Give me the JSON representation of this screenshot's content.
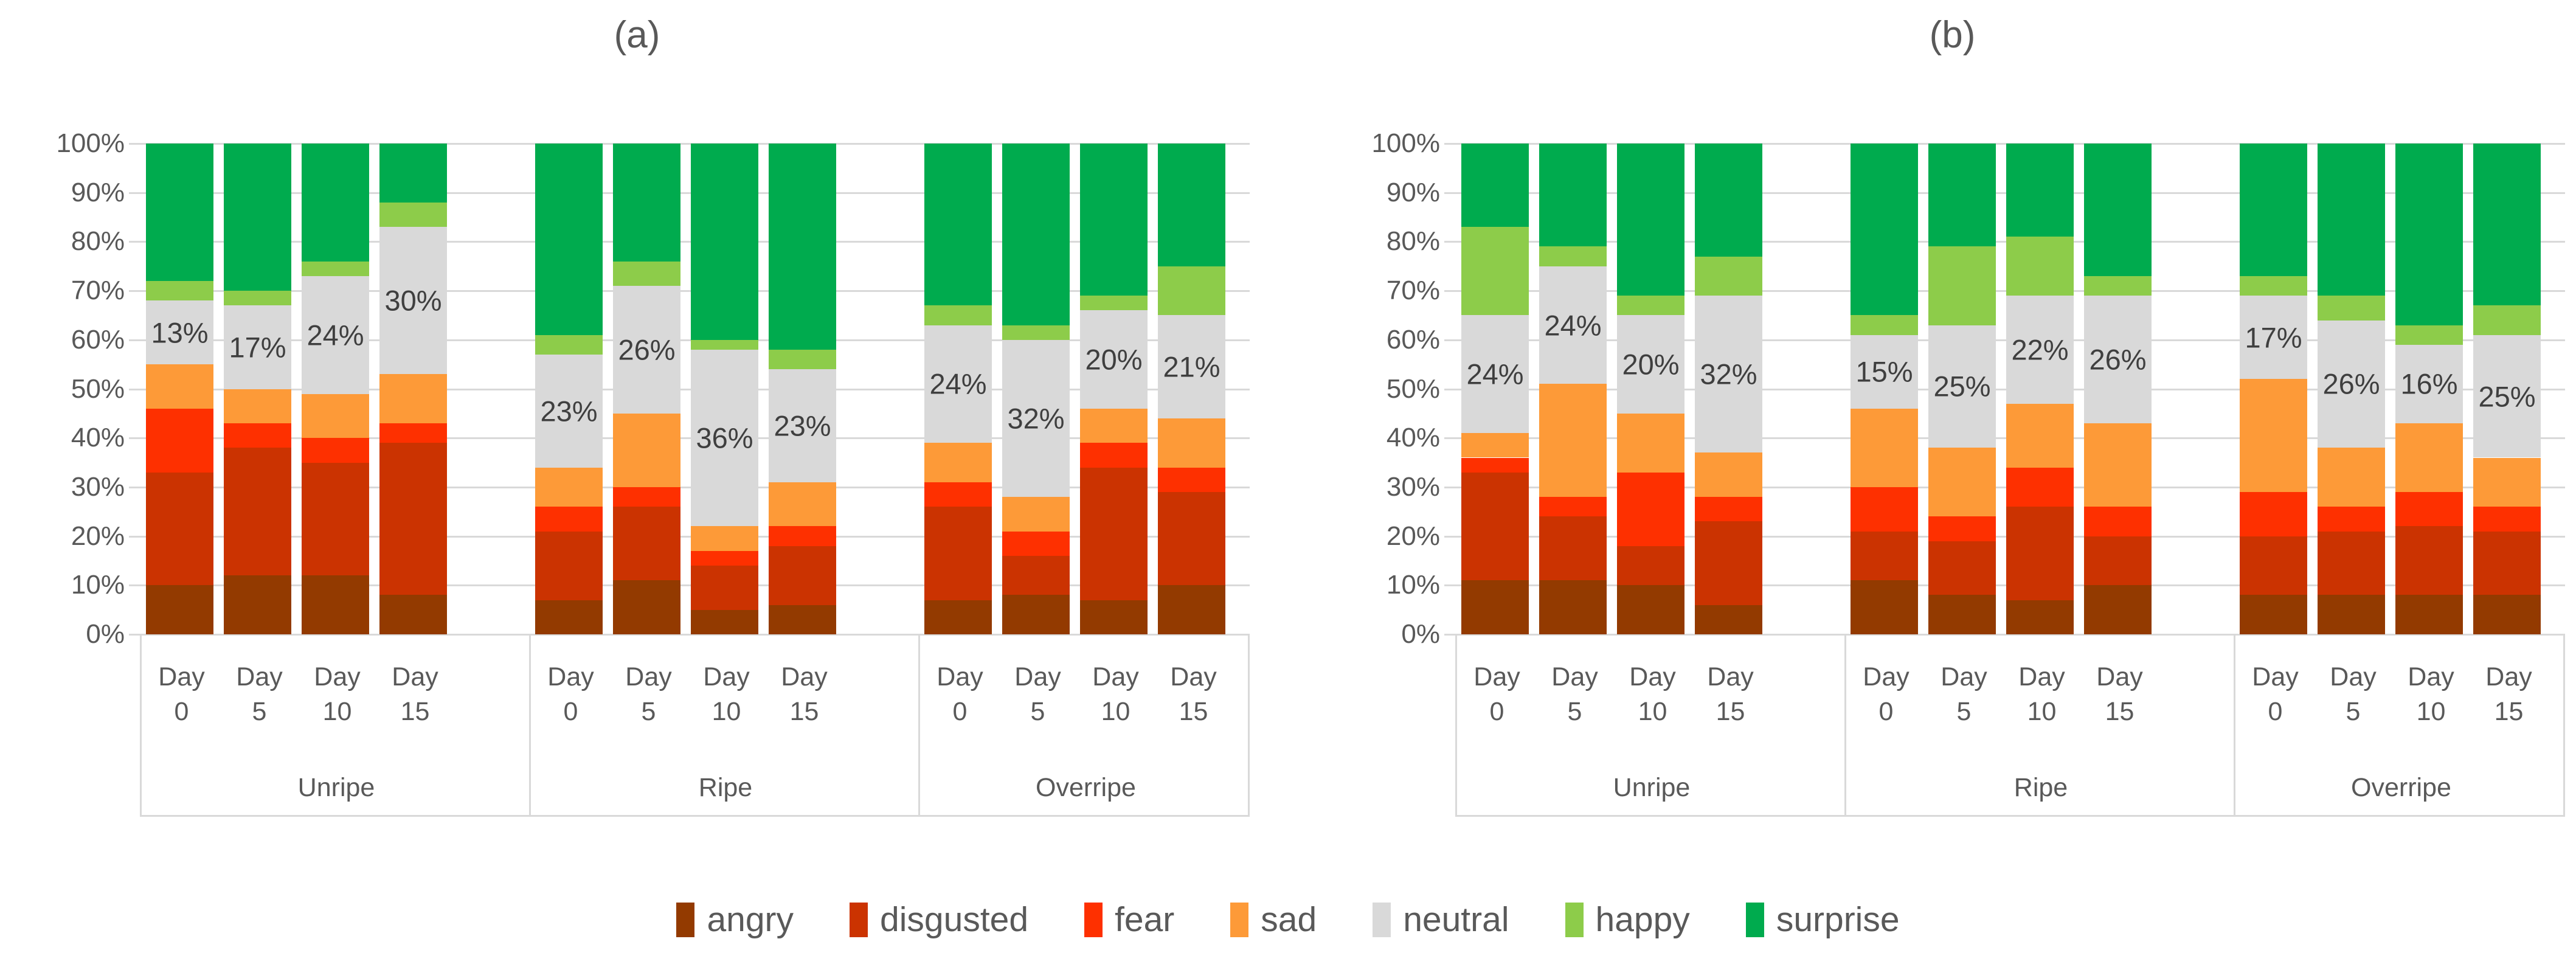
{
  "y_axis": {
    "ticks": [
      "100%",
      "90%",
      "80%",
      "70%",
      "60%",
      "50%",
      "40%",
      "30%",
      "20%",
      "10%",
      "0%"
    ],
    "min": 0,
    "max": 100,
    "step": 10,
    "grid": true
  },
  "legend": [
    {
      "label": "angry",
      "color": "#933A00"
    },
    {
      "label": "disgusted",
      "color": "#CB3301"
    },
    {
      "label": "fear",
      "color": "#FE3000"
    },
    {
      "label": "sad",
      "color": "#FD9A38"
    },
    {
      "label": "neutral",
      "color": "#D9D9D9"
    },
    {
      "label": "happy",
      "color": "#8DCC4A"
    },
    {
      "label": "surprise",
      "color": "#00AB4E"
    }
  ],
  "text_colors": {
    "axis": "#595959",
    "data_label": "#3F3F3F"
  },
  "chart_data": [
    {
      "type": "bar",
      "stacked": true,
      "title": "(a)",
      "ylim": [
        0,
        100
      ],
      "legend_position": "bottom-shared",
      "groups": [
        {
          "label": "Unripe",
          "bars": [
            {
              "day": [
                "Day",
                "0"
              ],
              "neutral_label": "13%",
              "values": {
                "angry": 10,
                "disgusted": 23,
                "fear": 13,
                "sad": 9,
                "neutral": 13,
                "happy": 4,
                "surprise": 28
              }
            },
            {
              "day": [
                "Day",
                "5"
              ],
              "neutral_label": "17%",
              "values": {
                "angry": 12,
                "disgusted": 26,
                "fear": 5,
                "sad": 7,
                "neutral": 17,
                "happy": 3,
                "surprise": 30
              }
            },
            {
              "day": [
                "Day",
                "10"
              ],
              "neutral_label": "24%",
              "values": {
                "angry": 12,
                "disgusted": 23,
                "fear": 5,
                "sad": 9,
                "neutral": 24,
                "happy": 3,
                "surprise": 24
              }
            },
            {
              "day": [
                "Day",
                "15"
              ],
              "neutral_label": "30%",
              "values": {
                "angry": 8,
                "disgusted": 31,
                "fear": 4,
                "sad": 10,
                "neutral": 30,
                "happy": 5,
                "surprise": 12
              }
            }
          ]
        },
        {
          "label": "Ripe",
          "bars": [
            {
              "day": [
                "Day",
                "0"
              ],
              "neutral_label": "23%",
              "values": {
                "angry": 7,
                "disgusted": 14,
                "fear": 5,
                "sad": 8,
                "neutral": 23,
                "happy": 4,
                "surprise": 39
              }
            },
            {
              "day": [
                "Day",
                "5"
              ],
              "neutral_label": "26%",
              "values": {
                "angry": 11,
                "disgusted": 15,
                "fear": 4,
                "sad": 15,
                "neutral": 26,
                "happy": 5,
                "surprise": 24
              }
            },
            {
              "day": [
                "Day",
                "10"
              ],
              "neutral_label": "36%",
              "values": {
                "angry": 5,
                "disgusted": 9,
                "fear": 3,
                "sad": 5,
                "neutral": 36,
                "happy": 2,
                "surprise": 40
              }
            },
            {
              "day": [
                "Day",
                "15"
              ],
              "neutral_label": "23%",
              "values": {
                "angry": 6,
                "disgusted": 12,
                "fear": 4,
                "sad": 9,
                "neutral": 23,
                "happy": 4,
                "surprise": 42
              }
            }
          ]
        },
        {
          "label": "Overripe",
          "bars": [
            {
              "day": [
                "Day",
                "0"
              ],
              "neutral_label": "24%",
              "values": {
                "angry": 7,
                "disgusted": 19,
                "fear": 5,
                "sad": 8,
                "neutral": 24,
                "happy": 4,
                "surprise": 33
              }
            },
            {
              "day": [
                "Day",
                "5"
              ],
              "neutral_label": "32%",
              "values": {
                "angry": 8,
                "disgusted": 8,
                "fear": 5,
                "sad": 7,
                "neutral": 32,
                "happy": 3,
                "surprise": 37
              }
            },
            {
              "day": [
                "Day",
                "10"
              ],
              "neutral_label": "20%",
              "values": {
                "angry": 7,
                "disgusted": 27,
                "fear": 5,
                "sad": 7,
                "neutral": 20,
                "happy": 3,
                "surprise": 31
              }
            },
            {
              "day": [
                "Day",
                "15"
              ],
              "neutral_label": "21%",
              "values": {
                "angry": 10,
                "disgusted": 19,
                "fear": 5,
                "sad": 10,
                "neutral": 21,
                "happy": 10,
                "surprise": 25
              }
            }
          ]
        }
      ]
    },
    {
      "type": "bar",
      "stacked": true,
      "title": "(b)",
      "ylim": [
        0,
        100
      ],
      "legend_position": "bottom-shared",
      "groups": [
        {
          "label": "Unripe",
          "bars": [
            {
              "day": [
                "Day",
                "0"
              ],
              "neutral_label": "24%",
              "values": {
                "angry": 11,
                "disgusted": 22,
                "fear": 3,
                "sad": 5,
                "neutral": 24,
                "happy": 18,
                "surprise": 17
              }
            },
            {
              "day": [
                "Day",
                "5"
              ],
              "neutral_label": "24%",
              "values": {
                "angry": 11,
                "disgusted": 13,
                "fear": 4,
                "sad": 23,
                "neutral": 24,
                "happy": 4,
                "surprise": 21
              }
            },
            {
              "day": [
                "Day",
                "10"
              ],
              "neutral_label": "20%",
              "values": {
                "angry": 10,
                "disgusted": 8,
                "fear": 15,
                "sad": 12,
                "neutral": 20,
                "happy": 4,
                "surprise": 31
              }
            },
            {
              "day": [
                "Day",
                "15"
              ],
              "neutral_label": "32%",
              "values": {
                "angry": 6,
                "disgusted": 17,
                "fear": 5,
                "sad": 9,
                "neutral": 32,
                "happy": 8,
                "surprise": 23
              }
            }
          ]
        },
        {
          "label": "Ripe",
          "bars": [
            {
              "day": [
                "Day",
                "0"
              ],
              "neutral_label": "15%",
              "values": {
                "angry": 11,
                "disgusted": 10,
                "fear": 9,
                "sad": 16,
                "neutral": 15,
                "happy": 4,
                "surprise": 35
              }
            },
            {
              "day": [
                "Day",
                "5"
              ],
              "neutral_label": "25%",
              "values": {
                "angry": 8,
                "disgusted": 11,
                "fear": 5,
                "sad": 14,
                "neutral": 25,
                "happy": 16,
                "surprise": 21
              }
            },
            {
              "day": [
                "Day",
                "10"
              ],
              "neutral_label": "22%",
              "values": {
                "angry": 7,
                "disgusted": 19,
                "fear": 8,
                "sad": 13,
                "neutral": 22,
                "happy": 12,
                "surprise": 19
              }
            },
            {
              "day": [
                "Day",
                "15"
              ],
              "neutral_label": "26%",
              "values": {
                "angry": 10,
                "disgusted": 10,
                "fear": 6,
                "sad": 17,
                "neutral": 26,
                "happy": 4,
                "surprise": 27
              }
            }
          ]
        },
        {
          "label": "Overripe",
          "bars": [
            {
              "day": [
                "Day",
                "0"
              ],
              "neutral_label": "17%",
              "values": {
                "angry": 8,
                "disgusted": 12,
                "fear": 9,
                "sad": 23,
                "neutral": 17,
                "happy": 4,
                "surprise": 27
              }
            },
            {
              "day": [
                "Day",
                "5"
              ],
              "neutral_label": "26%",
              "values": {
                "angry": 8,
                "disgusted": 13,
                "fear": 5,
                "sad": 12,
                "neutral": 26,
                "happy": 5,
                "surprise": 31
              }
            },
            {
              "day": [
                "Day",
                "10"
              ],
              "neutral_label": "16%",
              "values": {
                "angry": 8,
                "disgusted": 14,
                "fear": 7,
                "sad": 14,
                "neutral": 16,
                "happy": 4,
                "surprise": 37
              }
            },
            {
              "day": [
                "Day",
                "15"
              ],
              "neutral_label": "25%",
              "values": {
                "angry": 8,
                "disgusted": 13,
                "fear": 5,
                "sad": 10,
                "neutral": 25,
                "happy": 6,
                "surprise": 33
              }
            }
          ]
        }
      ]
    }
  ]
}
